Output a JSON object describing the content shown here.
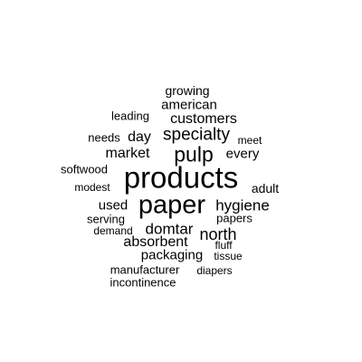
{
  "words": [
    {
      "id": "w-growing",
      "text": "growing"
    },
    {
      "id": "w-american",
      "text": "american"
    },
    {
      "id": "w-leading",
      "text": "leading"
    },
    {
      "id": "w-customers",
      "text": "customers"
    },
    {
      "id": "w-needs",
      "text": "needs"
    },
    {
      "id": "w-day",
      "text": "day"
    },
    {
      "id": "w-specialty",
      "text": "specialty"
    },
    {
      "id": "w-meet",
      "text": "meet"
    },
    {
      "id": "w-market",
      "text": "market"
    },
    {
      "id": "w-pulp",
      "text": "pulp"
    },
    {
      "id": "w-every",
      "text": "every"
    },
    {
      "id": "w-softwood",
      "text": "softwood"
    },
    {
      "id": "w-products",
      "text": "products"
    },
    {
      "id": "w-modest",
      "text": "modest"
    },
    {
      "id": "w-adult",
      "text": "adult"
    },
    {
      "id": "w-used",
      "text": "used"
    },
    {
      "id": "w-paper",
      "text": "paper"
    },
    {
      "id": "w-hygiene",
      "text": "hygiene"
    },
    {
      "id": "w-serving",
      "text": "serving"
    },
    {
      "id": "w-papers",
      "text": "papers"
    },
    {
      "id": "w-demand",
      "text": "demand"
    },
    {
      "id": "w-domtar",
      "text": "domtar"
    },
    {
      "id": "w-north",
      "text": "north"
    },
    {
      "id": "w-absorbent",
      "text": "absorbent"
    },
    {
      "id": "w-fluff",
      "text": "fluff"
    },
    {
      "id": "w-packaging",
      "text": "packaging"
    },
    {
      "id": "w-tissue",
      "text": "tissue"
    },
    {
      "id": "w-manufacturer",
      "text": "manufacturer"
    },
    {
      "id": "w-diapers",
      "text": "diapers"
    },
    {
      "id": "w-incontinence",
      "text": "incontinence"
    }
  ]
}
